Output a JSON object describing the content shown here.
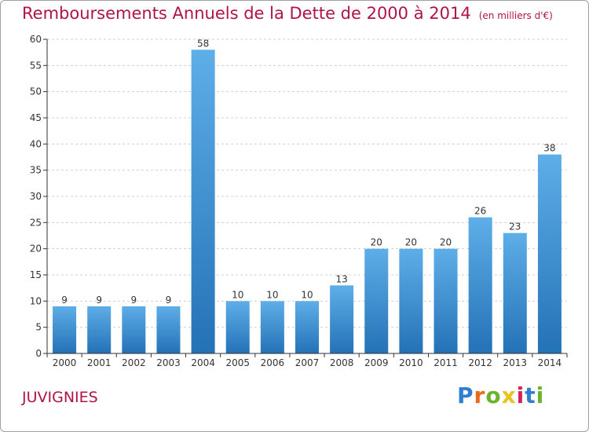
{
  "header": {
    "title": "Remboursements Annuels de la Dette de 2000 à 2014",
    "subtitle": "(en milliers d'€)"
  },
  "footer": {
    "commune": "JUVIGNIES",
    "logo_text": "Proxiti",
    "logo_colors": [
      "#2f7fd0",
      "#e86a1c",
      "#6bb22e",
      "#e8c31c",
      "#d0245a",
      "#2f7fd0",
      "#6bb22e"
    ]
  },
  "colors": {
    "title": "#b0124a",
    "bar_top": "#5eaee8",
    "bar_bottom": "#2472b6",
    "grid": "#d0d0d0",
    "axis": "#333333"
  },
  "chart_data": {
    "type": "bar",
    "title": "Remboursements Annuels de la Dette de 2000 à 2014",
    "subtitle": "(en milliers d'€)",
    "categories": [
      "2000",
      "2001",
      "2002",
      "2003",
      "2004",
      "2005",
      "2006",
      "2007",
      "2008",
      "2009",
      "2010",
      "2011",
      "2012",
      "2013",
      "2014"
    ],
    "values": [
      9,
      9,
      9,
      9,
      58,
      10,
      10,
      10,
      13,
      20,
      20,
      20,
      26,
      23,
      38
    ],
    "ylim": [
      0,
      60
    ],
    "yticks": [
      0,
      5,
      10,
      15,
      20,
      25,
      30,
      35,
      40,
      45,
      50,
      55,
      60
    ],
    "grid": true,
    "data_labels": true,
    "xlabel": "",
    "ylabel": ""
  }
}
